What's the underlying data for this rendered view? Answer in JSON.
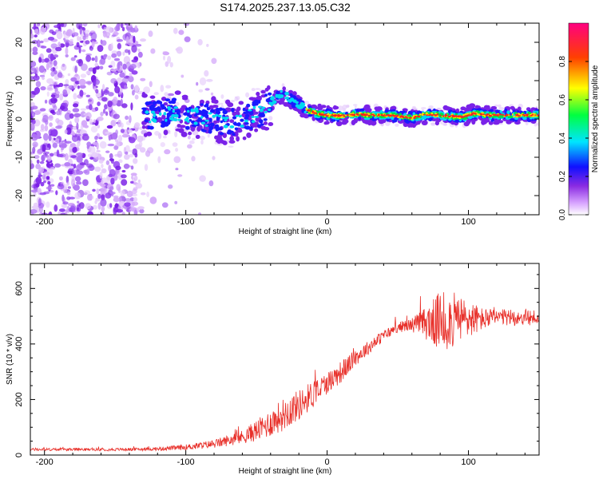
{
  "title": "S174.2025.237.13.05.C32",
  "chart_data": [
    {
      "type": "heatmap",
      "xlabel": "Height of straight line (km)",
      "ylabel": "Frequency (Hz)",
      "xlim": [
        -210,
        150
      ],
      "ylim": [
        -25,
        25
      ],
      "xticks": [
        -200,
        -100,
        0,
        100
      ],
      "yticks": [
        -20,
        -10,
        0,
        10,
        20
      ],
      "colorbar": {
        "label": "Normalized spectral amplitude",
        "range": [
          0,
          1
        ],
        "ticks": [
          0.0,
          0.2,
          0.4,
          0.6,
          0.8
        ],
        "tick_labels": [
          "0.0",
          "0.2",
          "0.4",
          "0.6",
          "0.8"
        ]
      },
      "ridge": {
        "x": [
          -128,
          -110,
          -90,
          -70,
          -55,
          -45,
          -38,
          -32,
          -28,
          -22,
          -15,
          -8,
          0,
          10,
          20,
          30,
          45,
          60,
          70,
          80,
          95,
          105,
          115,
          130,
          150
        ],
        "freq": [
          1.0,
          1.8,
          0.5,
          -1.0,
          0.5,
          2.0,
          5.0,
          6.5,
          5.8,
          4.2,
          2.5,
          1.5,
          1.0,
          0.8,
          1.2,
          1.0,
          1.0,
          0.3,
          1.2,
          1.0,
          0.5,
          1.5,
          1.0,
          1.0,
          1.0
        ]
      }
    },
    {
      "type": "line",
      "xlabel": "Height of straight line (km)",
      "ylabel": "SNR (10 * v/v)",
      "xlim": [
        -210,
        150
      ],
      "ylim": [
        0,
        690
      ],
      "xticks": [
        -200,
        -100,
        0,
        100
      ],
      "yticks": [
        0,
        200,
        400,
        600
      ],
      "series": [
        {
          "name": "SNR",
          "color": "#e8302a",
          "envelope_x": [
            -210,
            -150,
            -120,
            -100,
            -80,
            -60,
            -45,
            -30,
            -20,
            -10,
            0,
            10,
            20,
            30,
            40,
            50,
            60,
            70,
            80,
            90,
            100,
            110,
            120,
            130,
            140,
            150
          ],
          "envelope_y": [
            20,
            20,
            22,
            28,
            40,
            65,
            100,
            150,
            180,
            220,
            260,
            300,
            350,
            390,
            430,
            460,
            470,
            475,
            480,
            485,
            490,
            490,
            495,
            495,
            495,
            495
          ],
          "noise_amplitude": [
            5,
            5,
            6,
            10,
            15,
            25,
            45,
            60,
            55,
            50,
            40,
            40,
            30,
            25,
            20,
            18,
            25,
            60,
            110,
            100,
            70,
            40,
            30,
            30,
            30,
            30
          ]
        }
      ]
    }
  ]
}
